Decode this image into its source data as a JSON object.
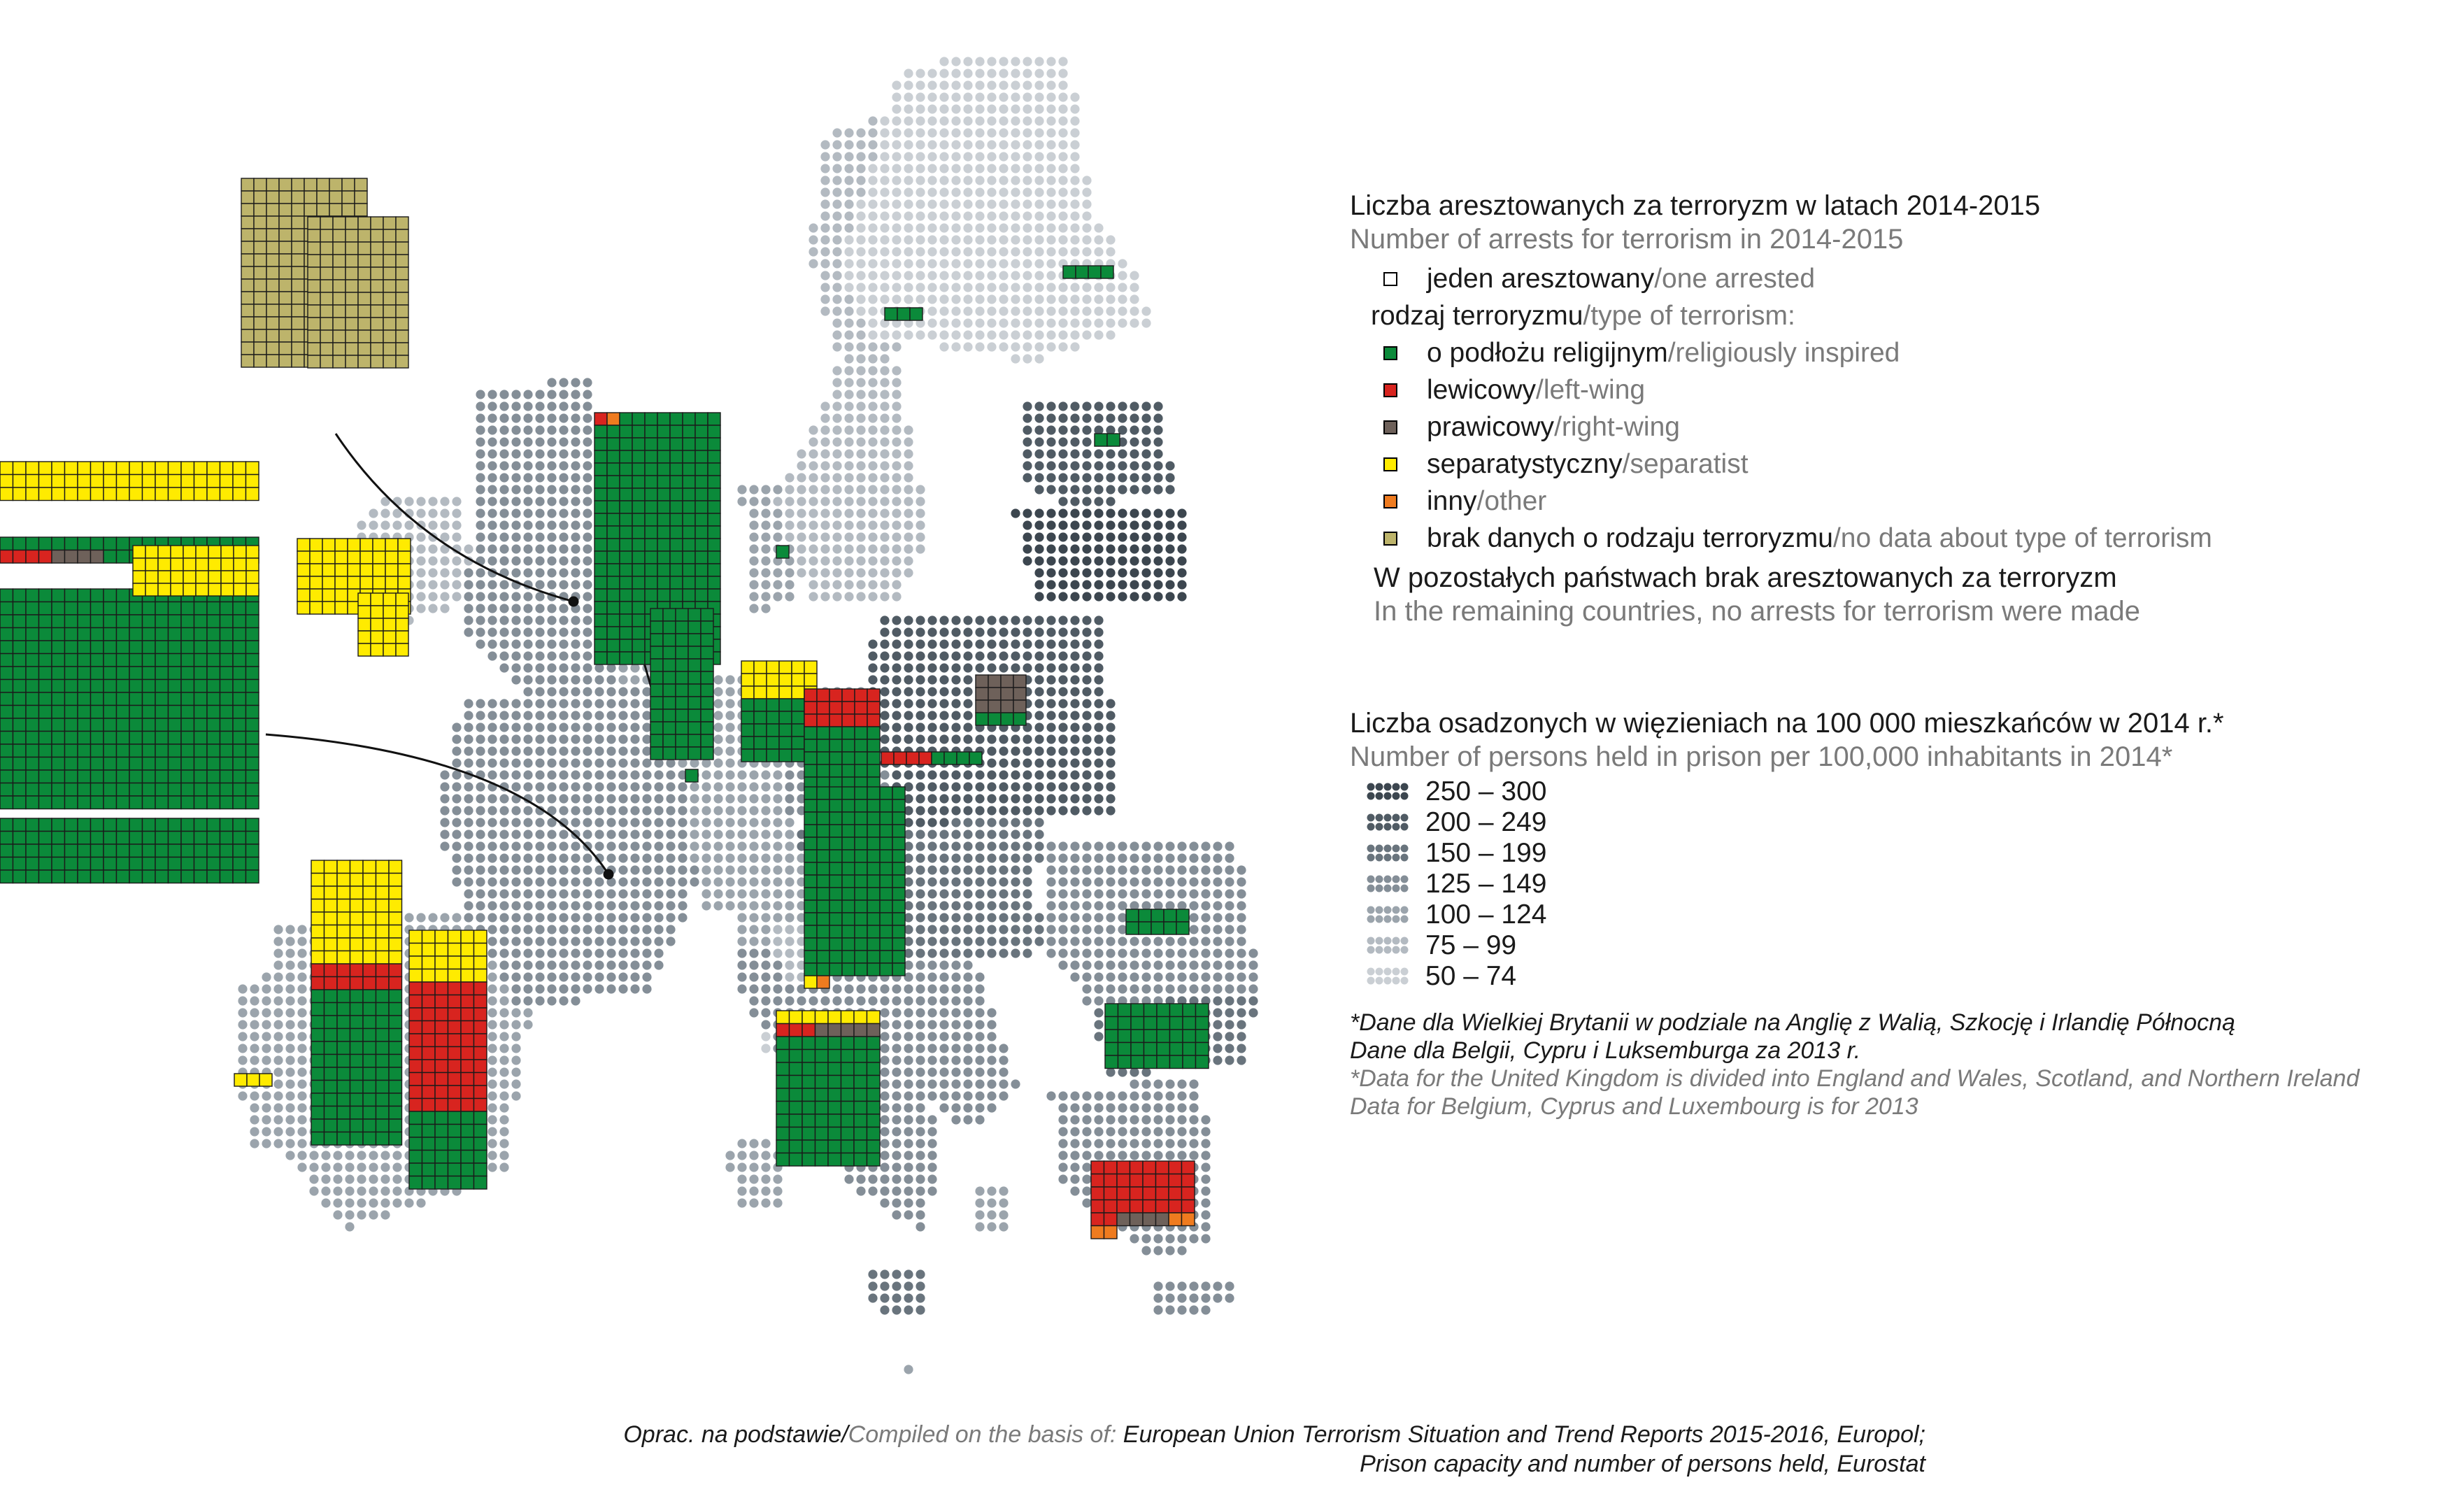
{
  "legend": {
    "arrests_title_pl": "Liczba aresztowanych za terroryzm w latach 2014-2015",
    "arrests_title_en": "Number of arrests for terrorism in 2014-2015",
    "one_arrested_pl": "jeden aresztowany",
    "one_arrested_en": "/one arrested",
    "type_label_pl": "rodzaj terroryzmu",
    "type_label_en": "/type of terrorism:",
    "types": [
      {
        "pl": "o podłożu religijnym",
        "en": "/religiously inspired",
        "color": "#0b8a3a"
      },
      {
        "pl": "lewicowy",
        "en": "/left-wing",
        "color": "#d8241f"
      },
      {
        "pl": "prawicowy",
        "en": "/right-wing",
        "color": "#6e615a"
      },
      {
        "pl": "separatystyczny",
        "en": "/separatist",
        "color": "#ffeb00"
      },
      {
        "pl": "inny",
        "en": "/other",
        "color": "#ef7b1f"
      },
      {
        "pl": "brak danych o rodzaju terroryzmu",
        "en": "/no data about type of terrorism",
        "color": "#bdb46b"
      }
    ],
    "no_arrests_pl": "W pozostałych państwach brak aresztowanych za terroryzm",
    "no_arrests_en": "In the remaining countries, no arrests for terrorism were made",
    "prison_title_pl": "Liczba osadzonych w więzieniach na 100 000 mieszkańców w 2014 r.*",
    "prison_title_en": "Number of persons held in prison per 100,000 inhabitants in 2014*",
    "prison_classes": [
      {
        "label": "250 – 300",
        "color": "#3c464f"
      },
      {
        "label": "200 – 249",
        "color": "#505b64"
      },
      {
        "label": "150 – 199",
        "color": "#69747d"
      },
      {
        "label": "125 – 149",
        "color": "#848e97"
      },
      {
        "label": "100 – 124",
        "color": "#9ba4ac"
      },
      {
        "label": "75 – 99",
        "color": "#b3bac1"
      },
      {
        "label": "50 – 74",
        "color": "#cacfd4"
      }
    ],
    "notes_pl": [
      "*Dane dla Wielkiej Brytanii w podziale na Anglię z Walią, Szkocję i Irlandię Północną",
      "Dane dla Belgii, Cypru i Luksemburga za 2013 r."
    ],
    "notes_en": [
      "*Data for the United Kingdom is divided into England and Wales, Scotland, and Northern Ireland",
      "Data for Belgium, Cyprus and Luxembourg is for 2013"
    ]
  },
  "source": {
    "prefix_pl": "Oprac. na podstawie/",
    "prefix_en": "Compiled on the basis of: ",
    "line1": "European Union Terrorism Situation and Trend Reports 2015-2016, Europol;",
    "line2": "Prison capacity and number of persons held, Eurostat"
  }
}
